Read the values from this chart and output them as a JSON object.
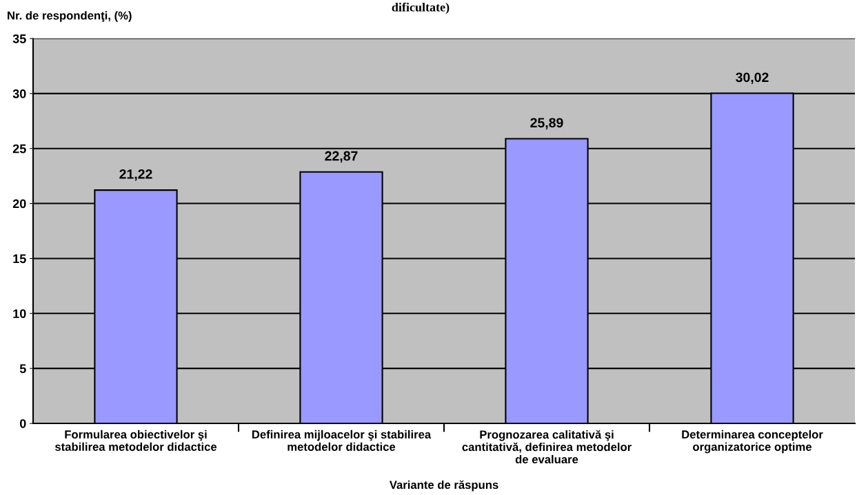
{
  "chart_data": {
    "type": "bar",
    "title": "dificultate)",
    "ylabel": "Nr. de respondenţi, (%)",
    "xlabel": "Variante de răspuns",
    "categories": [
      "Formularea obiectivelor şi\nstabilirea metodelor didactice",
      "Definirea mijloacelor şi stabilirea\nmetodelor didactice",
      "Prognozarea calitativă şi\ncantitativă, definirea metodelor\nde evaluare",
      "Determinarea conceptelor\norganizatorice optime"
    ],
    "values": [
      21.22,
      22.87,
      25.89,
      30.02
    ],
    "color": "#9999ff",
    "ylim": [
      0,
      35
    ],
    "yticks": [
      0,
      5,
      10,
      15,
      20,
      25,
      30,
      35
    ],
    "grid": "y",
    "data_labels": true,
    "value_labels": [
      "21,22",
      "22,87",
      "25,89",
      "30,02"
    ]
  }
}
